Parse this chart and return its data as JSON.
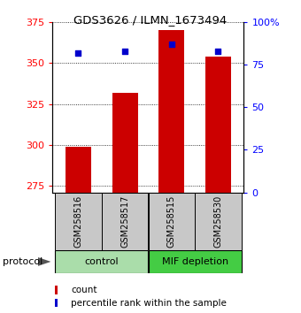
{
  "title": "GDS3626 / ILMN_1673494",
  "samples": [
    "GSM258516",
    "GSM258517",
    "GSM258515",
    "GSM258530"
  ],
  "bar_values": [
    299,
    332,
    370,
    354
  ],
  "percentile_values": [
    82,
    83,
    87,
    83
  ],
  "ymin": 271,
  "ymax": 375,
  "yticks": [
    275,
    300,
    325,
    350,
    375
  ],
  "y2min": 0,
  "y2max": 100,
  "y2ticks": [
    0,
    25,
    50,
    75,
    100
  ],
  "bar_color": "#cc0000",
  "percentile_color": "#0000cc",
  "bar_bottom": 271,
  "ctrl_color": "#aaddaa",
  "mif_color": "#44cc44",
  "sample_box_color": "#c8c8c8",
  "protocol_label": "protocol",
  "legend_count_label": "count",
  "legend_pct_label": "percentile rank within the sample",
  "fig_width": 3.4,
  "fig_height": 3.54,
  "dpi": 100
}
